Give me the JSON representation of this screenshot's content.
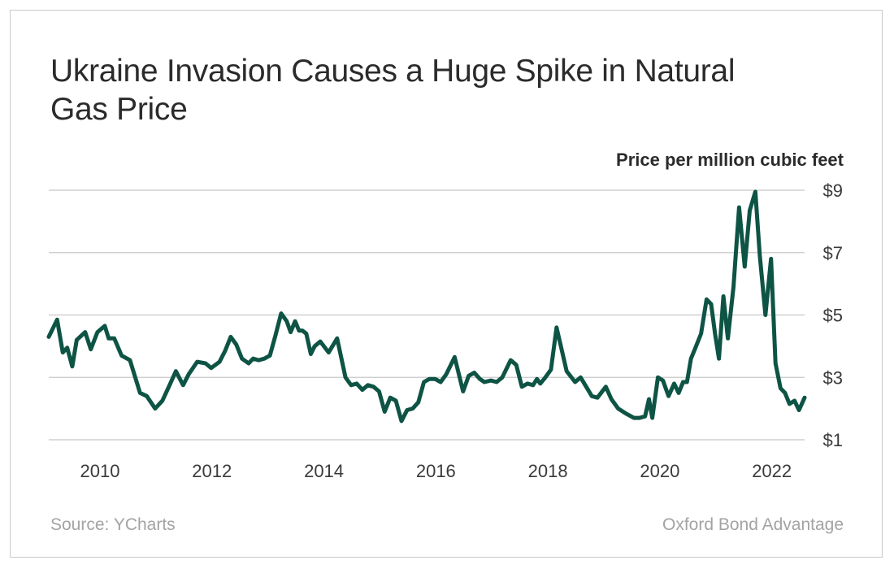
{
  "title": "Ukraine Invasion Causes a Huge Spike in Natural Gas Price",
  "footer": {
    "source": "Source: YCharts",
    "brand": "Oxford Bond Advantage"
  },
  "colors": {
    "line": "#0e5445",
    "grid": "#c8c8c8",
    "text": "#2b2b2b",
    "footer": "#a3a3a3",
    "border": "#c9c9c9"
  },
  "chart_data": {
    "type": "line",
    "title": "Ukraine Invasion Causes a Huge Spike in Natural Gas Price",
    "ylabel": "Price per million cubic feet",
    "xlabel": "",
    "xlim": [
      2009.55,
      2023.05
    ],
    "ylim": [
      1,
      9
    ],
    "grid": true,
    "y_ticks": [
      1,
      3,
      5,
      7,
      9
    ],
    "y_tick_labels": [
      "$1",
      "$3",
      "$5",
      "$7",
      "$9"
    ],
    "x_ticks": [
      2010,
      2012,
      2014,
      2016,
      2018,
      2020,
      2022
    ],
    "x_tick_labels": [
      "2010",
      "2012",
      "2014",
      "2016",
      "2018",
      "2020",
      "2022"
    ],
    "series": [
      {
        "name": "Natural Gas Price",
        "x": [
          2009.55,
          2009.7,
          2009.8,
          2009.88,
          2009.97,
          2010.05,
          2010.2,
          2010.3,
          2010.42,
          2010.55,
          2010.62,
          2010.72,
          2010.85,
          2011.0,
          2011.18,
          2011.3,
          2011.45,
          2011.58,
          2011.72,
          2011.82,
          2011.95,
          2012.05,
          2012.2,
          2012.35,
          2012.45,
          2012.6,
          2012.7,
          2012.8,
          2012.9,
          2013.0,
          2013.12,
          2013.2,
          2013.3,
          2013.4,
          2013.5,
          2013.6,
          2013.7,
          2013.8,
          2013.87,
          2013.95,
          2014.02,
          2014.08,
          2014.15,
          2014.23,
          2014.3,
          2014.4,
          2014.55,
          2014.7,
          2014.85,
          2014.95,
          2015.05,
          2015.15,
          2015.25,
          2015.35,
          2015.45,
          2015.55,
          2015.65,
          2015.75,
          2015.85,
          2015.95,
          2016.05,
          2016.15,
          2016.25,
          2016.35,
          2016.45,
          2016.55,
          2016.65,
          2016.8,
          2016.95,
          2017.05,
          2017.15,
          2017.25,
          2017.33,
          2017.45,
          2017.55,
          2017.65,
          2017.8,
          2017.9,
          2018.0,
          2018.1,
          2018.2,
          2018.27,
          2018.33,
          2018.42,
          2018.52,
          2018.62,
          2018.8,
          2018.95,
          2019.05,
          2019.15,
          2019.25,
          2019.35,
          2019.5,
          2019.6,
          2019.72,
          2019.85,
          2020.0,
          2020.1,
          2020.2,
          2020.27,
          2020.33,
          2020.43,
          2020.52,
          2020.62,
          2020.72,
          2020.8,
          2020.88,
          2020.95,
          2021.02,
          2021.1,
          2021.2,
          2021.3,
          2021.38,
          2021.45,
          2021.52,
          2021.6,
          2021.68,
          2021.78,
          2021.88,
          2021.98,
          2022.07,
          2022.17,
          2022.25,
          2022.35,
          2022.45,
          2022.53,
          2022.62,
          2022.7,
          2022.78,
          2022.87,
          2022.95,
          2023.05
        ],
        "values": [
          4.3,
          4.85,
          3.8,
          3.95,
          3.35,
          4.2,
          4.45,
          3.9,
          4.45,
          4.65,
          4.25,
          4.25,
          3.7,
          3.55,
          2.5,
          2.4,
          2.0,
          2.25,
          2.8,
          3.2,
          2.75,
          3.1,
          3.5,
          3.45,
          3.3,
          3.5,
          3.85,
          4.3,
          4.05,
          3.6,
          3.45,
          3.6,
          3.55,
          3.6,
          3.7,
          4.35,
          5.05,
          4.8,
          4.45,
          4.8,
          4.5,
          4.5,
          4.4,
          3.75,
          4.0,
          4.15,
          3.8,
          4.25,
          3.0,
          2.75,
          2.8,
          2.6,
          2.75,
          2.7,
          2.55,
          1.9,
          2.35,
          2.25,
          1.6,
          1.95,
          2.0,
          2.2,
          2.85,
          2.95,
          2.95,
          2.85,
          3.1,
          3.65,
          2.55,
          3.05,
          3.15,
          2.95,
          2.85,
          2.9,
          2.85,
          3.0,
          3.55,
          3.4,
          2.7,
          2.8,
          2.75,
          2.95,
          2.8,
          3.0,
          3.25,
          4.6,
          3.2,
          2.85,
          3.0,
          2.7,
          2.4,
          2.35,
          2.7,
          2.3,
          2.0,
          1.85,
          1.7,
          1.7,
          1.75,
          2.3,
          1.7,
          3.0,
          2.9,
          2.4,
          2.8,
          2.5,
          2.85,
          2.85,
          3.6,
          3.95,
          4.4,
          5.5,
          5.35,
          4.4,
          3.6,
          5.6,
          4.25,
          5.9,
          8.45,
          6.55,
          8.35,
          8.95,
          6.9,
          5.0,
          6.8,
          3.45,
          2.65,
          2.5,
          2.15,
          2.25,
          1.95,
          2.35
        ]
      }
    ]
  }
}
